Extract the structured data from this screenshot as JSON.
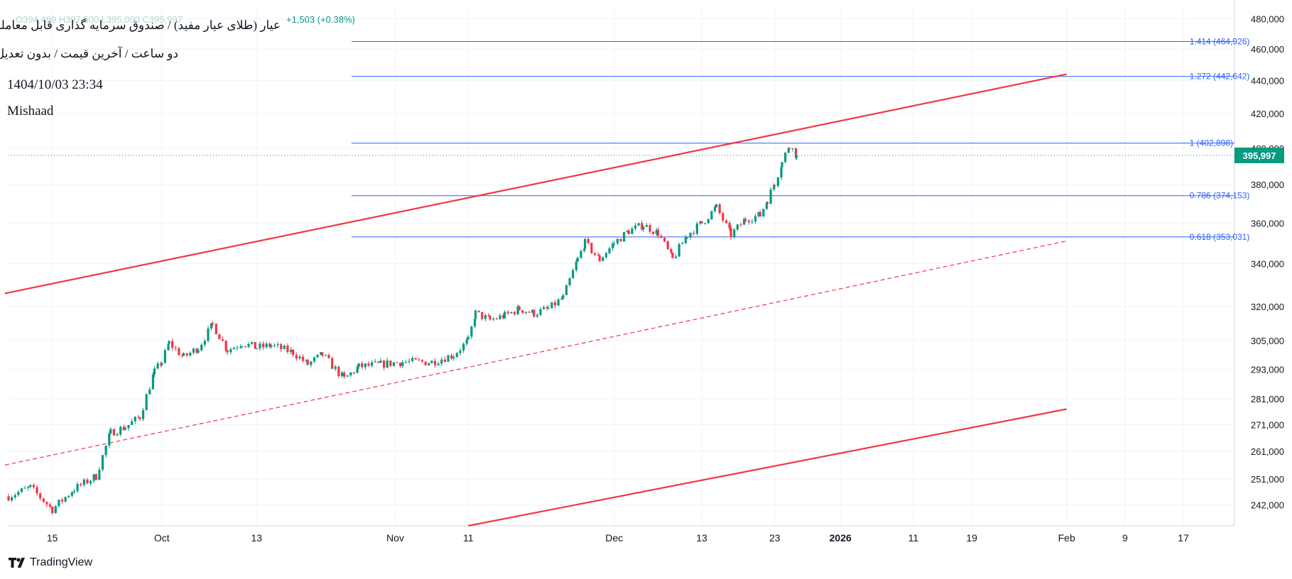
{
  "header": {
    "title": "عیار (طلای عیار مفید) / صندوق سرمایه گذاری قابل معامله",
    "subtitle": "دو ساعت / آخرین قیمت / بدون تعدیل",
    "datetime": "1404/10/03 23:34",
    "author": "Mishaad",
    "ohlc_text": "O394,499 H397,500 L395,000 C395,997",
    "change_text": "+1,503 (+0.38%)"
  },
  "branding": {
    "logo_text": "TradingView"
  },
  "colors": {
    "up": "#089981",
    "down": "#f23645",
    "fib": "#2962ff",
    "channel": "#f23645",
    "grid": "#f0f3fa",
    "axis_text": "#131722",
    "price_label_bg": "#089981"
  },
  "chart_data": {
    "type": "candlestick",
    "scale": "log",
    "y_ticks": [
      242000,
      251000,
      261000,
      271000,
      281000,
      293000,
      305000,
      320000,
      340000,
      360000,
      380000,
      400000,
      420000,
      440000,
      460000,
      480000
    ],
    "x_ticks": [
      {
        "label": "15",
        "day": 0
      },
      {
        "label": "Oct",
        "day": 15
      },
      {
        "label": "13",
        "day": 28
      },
      {
        "label": "Nov",
        "day": 47
      },
      {
        "label": "11",
        "day": 57
      },
      {
        "label": "Dec",
        "day": 77
      },
      {
        "label": "13",
        "day": 89
      },
      {
        "label": "23",
        "day": 99
      },
      {
        "label": "2026",
        "day": 108,
        "bold": true
      },
      {
        "label": "11",
        "day": 118
      },
      {
        "label": "19",
        "day": 126
      },
      {
        "label": "Feb",
        "day": 139
      },
      {
        "label": "9",
        "day": 147
      },
      {
        "label": "17",
        "day": 155
      }
    ],
    "x_range": [
      -6,
      162
    ],
    "y_range": [
      235000,
      488000
    ],
    "last_price": 395997,
    "last_price_label": "395,997",
    "fib_levels": [
      {
        "ratio": "1.414",
        "value": 464926,
        "label": "1.414 (464,926)"
      },
      {
        "ratio": "1.272",
        "value": 442642,
        "label": "1.272 (442,642)"
      },
      {
        "ratio": "1",
        "value": 402898,
        "label": "1 (402,898)"
      },
      {
        "ratio": "0.786",
        "value": 374153,
        "label": "0.786 (374,153)"
      },
      {
        "ratio": "0.618",
        "value": 353031,
        "label": "0.618 (353,031)"
      }
    ],
    "fib_range_days": [
      41,
      139
    ],
    "channel_lines": [
      {
        "name": "upper",
        "style": "solid",
        "from": {
          "day": -6.5,
          "value": 326000
        },
        "to": {
          "day": 139,
          "value": 444000
        }
      },
      {
        "name": "middle",
        "style": "dashed",
        "from": {
          "day": -6.5,
          "value": 256000
        },
        "to": {
          "day": 139,
          "value": 351000
        }
      },
      {
        "name": "lower",
        "style": "solid",
        "from": {
          "day": 57,
          "value": 235000
        },
        "to": {
          "day": 139,
          "value": 277000
        }
      }
    ],
    "anchors": [
      {
        "day": -6,
        "value": 245000
      },
      {
        "day": -3,
        "value": 248000
      },
      {
        "day": 0,
        "value": 240500
      },
      {
        "day": 3,
        "value": 247500
      },
      {
        "day": 6,
        "value": 252000
      },
      {
        "day": 8,
        "value": 268000
      },
      {
        "day": 10,
        "value": 270000
      },
      {
        "day": 12,
        "value": 274000
      },
      {
        "day": 14,
        "value": 292000
      },
      {
        "day": 15,
        "value": 296000
      },
      {
        "day": 16,
        "value": 304000
      },
      {
        "day": 18,
        "value": 298000
      },
      {
        "day": 20,
        "value": 302000
      },
      {
        "day": 22,
        "value": 312000
      },
      {
        "day": 24,
        "value": 301000
      },
      {
        "day": 26,
        "value": 304000
      },
      {
        "day": 28,
        "value": 302000
      },
      {
        "day": 30,
        "value": 303000
      },
      {
        "day": 33,
        "value": 300000
      },
      {
        "day": 35,
        "value": 295000
      },
      {
        "day": 37,
        "value": 299000
      },
      {
        "day": 40,
        "value": 289000
      },
      {
        "day": 42,
        "value": 294000
      },
      {
        "day": 45,
        "value": 295000
      },
      {
        "day": 48,
        "value": 296000
      },
      {
        "day": 52,
        "value": 296000
      },
      {
        "day": 55,
        "value": 299000
      },
      {
        "day": 57,
        "value": 305000
      },
      {
        "day": 58,
        "value": 317000
      },
      {
        "day": 60,
        "value": 314000
      },
      {
        "day": 62,
        "value": 316000
      },
      {
        "day": 64,
        "value": 319000
      },
      {
        "day": 66,
        "value": 317000
      },
      {
        "day": 68,
        "value": 319000
      },
      {
        "day": 70,
        "value": 324000
      },
      {
        "day": 72,
        "value": 342000
      },
      {
        "day": 73,
        "value": 350000
      },
      {
        "day": 75,
        "value": 342000
      },
      {
        "day": 77,
        "value": 350000
      },
      {
        "day": 79,
        "value": 356000
      },
      {
        "day": 81,
        "value": 359000
      },
      {
        "day": 83,
        "value": 355000
      },
      {
        "day": 85,
        "value": 342000
      },
      {
        "day": 87,
        "value": 354000
      },
      {
        "day": 89,
        "value": 360000
      },
      {
        "day": 91,
        "value": 368000
      },
      {
        "day": 93,
        "value": 354000
      },
      {
        "day": 95,
        "value": 362000
      },
      {
        "day": 97,
        "value": 364000
      },
      {
        "day": 98,
        "value": 372000
      },
      {
        "day": 99,
        "value": 381000
      },
      {
        "day": 100,
        "value": 392000
      },
      {
        "day": 101,
        "value": 402000
      },
      {
        "day": 102,
        "value": 396000
      }
    ]
  }
}
